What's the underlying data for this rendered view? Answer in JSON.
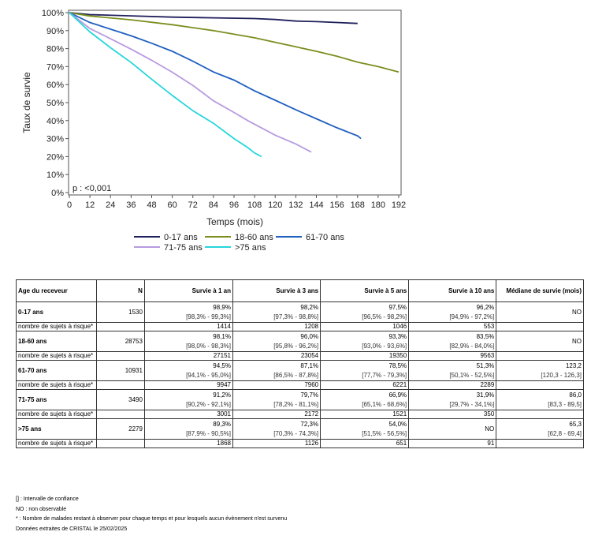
{
  "chart_data": {
    "type": "line",
    "xlabel": "Temps (mois)",
    "ylabel": "Taux de survie",
    "xlim": [
      0,
      192
    ],
    "ylim": [
      0,
      100
    ],
    "xticks": [
      "0",
      "12",
      "24",
      "36",
      "48",
      "60",
      "72",
      "84",
      "96",
      "108",
      "120",
      "132",
      "144",
      "156",
      "168",
      "180",
      "192"
    ],
    "yticks": [
      "0%",
      "10%",
      "20%",
      "30%",
      "40%",
      "50%",
      "60%",
      "70%",
      "80%",
      "90%",
      "100%"
    ],
    "annotation": "p : <0,001",
    "legend_position": "bottom",
    "grid": false,
    "series": [
      {
        "name": "0-17 ans",
        "color": "#1f1f5c",
        "x": [
          0,
          12,
          36,
          60,
          84,
          108,
          120,
          132,
          144,
          156,
          168
        ],
        "y": [
          100,
          98.9,
          98.2,
          97.5,
          97.1,
          96.7,
          96.2,
          95.3,
          95,
          94.5,
          94
        ]
      },
      {
        "name": "18-60 ans",
        "color": "#7a8f1e",
        "x": [
          0,
          12,
          36,
          60,
          84,
          108,
          120,
          132,
          144,
          156,
          168,
          180,
          192
        ],
        "y": [
          100,
          98.1,
          96,
          93.3,
          90,
          86,
          83.5,
          81,
          78.5,
          75.8,
          72.5,
          70,
          67
        ]
      },
      {
        "name": "61-70 ans",
        "color": "#1f5fbf",
        "x": [
          0,
          12,
          36,
          48,
          60,
          72,
          84,
          96,
          108,
          120,
          132,
          144,
          156,
          168,
          170
        ],
        "y": [
          100,
          94.5,
          87.1,
          83,
          78.5,
          73,
          67,
          62.5,
          56.5,
          51.3,
          46,
          41,
          36,
          31.5,
          30
        ]
      },
      {
        "name": "71-75 ans",
        "color": "#b89ae0",
        "x": [
          0,
          12,
          24,
          36,
          48,
          60,
          72,
          84,
          96,
          104,
          120,
          132,
          141
        ],
        "y": [
          100,
          91.2,
          85.5,
          79.7,
          73.5,
          66.9,
          59.5,
          51,
          44.5,
          40,
          31.9,
          27,
          22.5
        ]
      },
      {
        "name": ">75 ans",
        "color": "#26d6dc",
        "x": [
          0,
          12,
          24,
          36,
          48,
          60,
          72,
          84,
          96,
          104,
          108,
          112
        ],
        "y": [
          100,
          89.3,
          80.5,
          72.3,
          63,
          54,
          45.5,
          38.5,
          30,
          25,
          22,
          20
        ]
      }
    ]
  },
  "table": {
    "headers": [
      "Age du receveur",
      "N",
      "Survie à 1 an",
      "Survie à 3 ans",
      "Survie à 5 ans",
      "Survie à 10 ans",
      "Médiane de survie (mois)"
    ],
    "risk_label": "nombre de sujets à risque*",
    "rows": [
      {
        "group": "0-17 ans",
        "n": "1530",
        "s1": "98,9%",
        "ci1": "[98,3% - 99,3%]",
        "s3": "98,2%",
        "ci3": "[97,3% - 98,8%]",
        "s5": "97,5%",
        "ci5": "[96,5% - 98,2%]",
        "s10": "96,2%",
        "ci10": "[94,9% - 97,2%]",
        "med": "NO",
        "cimed": "",
        "r1": "1414",
        "r3": "1208",
        "r5": "1046",
        "r10": "553"
      },
      {
        "group": "18-60 ans",
        "n": "28753",
        "s1": "98,1%",
        "ci1": "[98,0% - 98,3%]",
        "s3": "96,0%",
        "ci3": "[95,8% - 96,2%]",
        "s5": "93,3%",
        "ci5": "[93,0% - 93,6%]",
        "s10": "83,5%",
        "ci10": "[82,9% - 84,0%]",
        "med": "NO",
        "cimed": "",
        "r1": "27151",
        "r3": "23054",
        "r5": "19350",
        "r10": "9563"
      },
      {
        "group": "61-70 ans",
        "n": "10931",
        "s1": "94,5%",
        "ci1": "[94,1% - 95,0%]",
        "s3": "87,1%",
        "ci3": "[86,5% - 87,8%]",
        "s5": "78,5%",
        "ci5": "[77,7% - 79,3%]",
        "s10": "51,3%",
        "ci10": "[50,1% - 52,5%]",
        "med": "123,2",
        "cimed": "[120,3 - 126,3]",
        "r1": "9947",
        "r3": "7960",
        "r5": "6221",
        "r10": "2289"
      },
      {
        "group": "71-75 ans",
        "n": "3490",
        "s1": "91,2%",
        "ci1": "[90,2% - 92,1%]",
        "s3": "79,7%",
        "ci3": "[78,2% - 81,1%]",
        "s5": "66,9%",
        "ci5": "[65,1% - 68,6%]",
        "s10": "31,9%",
        "ci10": "[29,7% - 34,1%]",
        "med": "86,0",
        "cimed": "[83,3 - 89,5]",
        "r1": "3001",
        "r3": "2172",
        "r5": "1521",
        "r10": "350"
      },
      {
        "group": ">75 ans",
        "n": "2279",
        "s1": "89,3%",
        "ci1": "[87,9% - 90,5%]",
        "s3": "72,3%",
        "ci3": "[70,3% - 74,3%]",
        "s5": "54,0%",
        "ci5": "[51,5% - 56,5%]",
        "s10": "NO",
        "ci10": "",
        "med": "65,3",
        "cimed": "[62,8 - 69,4]",
        "r1": "1868",
        "r3": "1126",
        "r5": "651",
        "r10": "91"
      }
    ]
  },
  "notes": [
    "[] : Intervalle de confiance",
    "NO : non observable",
    "* : Nombre de malades restant à observer pour chaque temps et pour lesquels aucun évènement n'est survenu",
    "Données extraites de CRISTAL le 25/02/2025"
  ]
}
